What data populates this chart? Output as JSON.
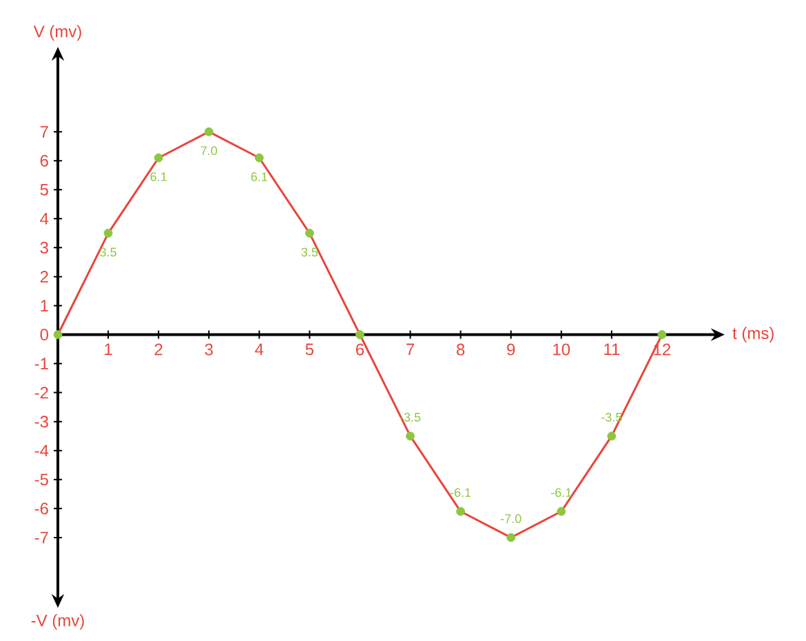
{
  "chart_data": {
    "type": "line",
    "xlabel": "t (ms)",
    "ylabel": "V (mv)",
    "annotations": [
      "-V (mv)"
    ],
    "x": [
      0,
      1,
      2,
      3,
      4,
      5,
      6,
      7,
      8,
      9,
      10,
      11,
      12
    ],
    "series": [
      {
        "color": "#e8453c",
        "colors": [
          "#8dc63f",
          "#8dc63f",
          "#8dc63f",
          "#8dc63f",
          "#8dc63f",
          "#8dc63f",
          "#8dc63f",
          "#8dc63f",
          "#8dc63f",
          "#8dc63f",
          "#8dc63f",
          "#8dc63f",
          "#8dc63f"
        ],
        "values": [
          0,
          3.5,
          6.1,
          7.0,
          6.1,
          3.5,
          0,
          -3.5,
          -6.1,
          -7.0,
          -6.1,
          -3.5,
          0
        ],
        "value_labels": [
          null,
          "3.5",
          "6.1",
          "7.0",
          "6.1",
          "3.5",
          null,
          "-3.5",
          "-6.1",
          "-7.0",
          "-6.1",
          "-3.5",
          null
        ]
      }
    ],
    "xlim": [
      0,
      13
    ],
    "ylim": [
      -9,
      9.5
    ],
    "xticks": [
      1,
      2,
      3,
      4,
      5,
      6,
      7,
      8,
      9,
      10,
      11,
      12
    ],
    "yticks": [
      -7,
      -6,
      -5,
      -4,
      -3,
      -2,
      -1,
      0,
      1,
      2,
      3,
      4,
      5,
      6,
      7
    ],
    "marker": "circle",
    "line_style": "solid",
    "grid": false
  }
}
